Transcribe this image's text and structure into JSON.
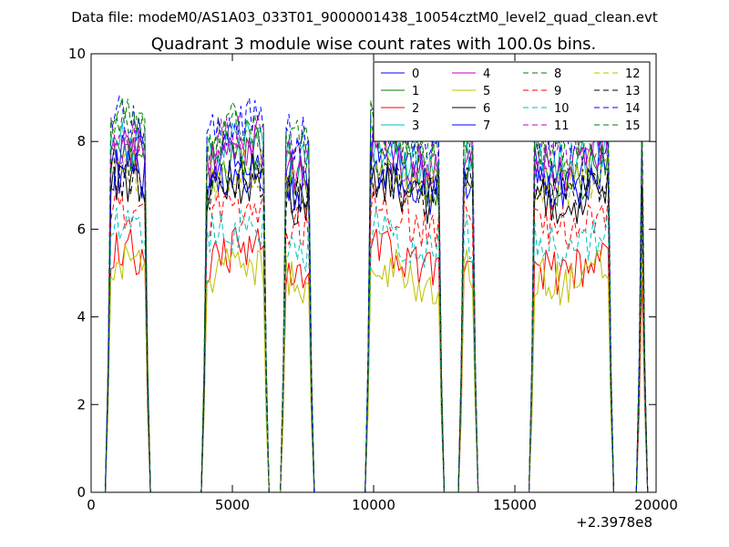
{
  "header": {
    "data_file_label": "Data file: modeM0/AS1A03_033T01_9000001438_10054cztM0_level2_quad_clean.evt"
  },
  "chart_data": {
    "type": "line",
    "title": "Quadrant 3 module wise count rates with 100.0s bins.",
    "xlabel": "",
    "ylabel": "",
    "x_offset_label": "+2.3978e8",
    "xlim": [
      0,
      20000
    ],
    "ylim": [
      0,
      10
    ],
    "x_ticks": [
      0,
      5000,
      10000,
      15000,
      20000
    ],
    "y_ticks": [
      0,
      2,
      4,
      6,
      8,
      10
    ],
    "grid": false,
    "legend_position": "top-right",
    "legend_columns": 4,
    "segments": [
      [
        600,
        2000
      ],
      [
        4000,
        6200
      ],
      [
        6800,
        7800
      ],
      [
        9800,
        12400
      ],
      [
        13100,
        13600
      ],
      [
        15600,
        18400
      ],
      [
        19400,
        19600
      ]
    ],
    "series": [
      {
        "name": "0",
        "color": "#0000ff",
        "dash": "solid",
        "level": 7.5
      },
      {
        "name": "1",
        "color": "#008000",
        "dash": "solid",
        "level": 7.3
      },
      {
        "name": "2",
        "color": "#ff0000",
        "dash": "solid",
        "level": 5.3
      },
      {
        "name": "3",
        "color": "#00bfbf",
        "dash": "solid",
        "level": 7.7
      },
      {
        "name": "4",
        "color": "#bf00bf",
        "dash": "solid",
        "level": 7.6
      },
      {
        "name": "5",
        "color": "#bfbf00",
        "dash": "solid",
        "level": 5.0
      },
      {
        "name": "6",
        "color": "#000000",
        "dash": "solid",
        "level": 6.8
      },
      {
        "name": "7",
        "color": "#0000ff",
        "dash": "solid",
        "level": 7.1
      },
      {
        "name": "8",
        "color": "#008000",
        "dash": "dashed",
        "level": 8.0
      },
      {
        "name": "9",
        "color": "#ff0000",
        "dash": "dashed",
        "level": 6.3
      },
      {
        "name": "10",
        "color": "#00bfbf",
        "dash": "dashed",
        "level": 5.8
      },
      {
        "name": "11",
        "color": "#bf00bf",
        "dash": "dashed",
        "level": 7.9
      },
      {
        "name": "12",
        "color": "#bfbf00",
        "dash": "dashed",
        "level": 7.2
      },
      {
        "name": "13",
        "color": "#000000",
        "dash": "dashed",
        "level": 7.0
      },
      {
        "name": "14",
        "color": "#0000ff",
        "dash": "dashed",
        "level": 8.3
      },
      {
        "name": "15",
        "color": "#008000",
        "dash": "dashed",
        "level": 8.2
      }
    ]
  }
}
